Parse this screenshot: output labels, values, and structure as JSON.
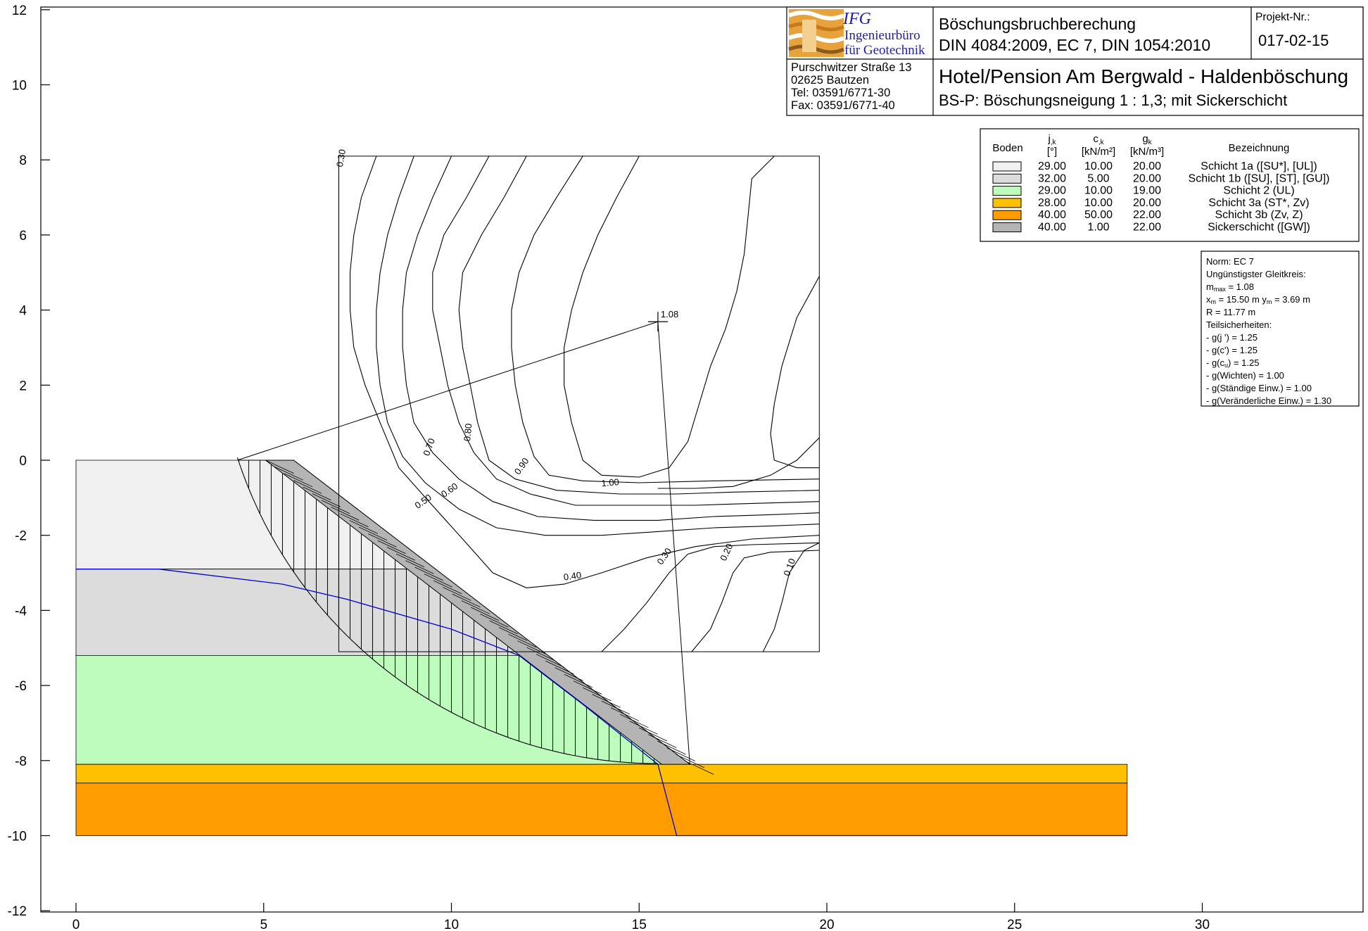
{
  "header": {
    "logo_abbr": "IFG",
    "logo_line1": "Ingenieurbüro",
    "logo_line2": "für Geotechnik",
    "address": [
      "Purschwitzer Straße 13",
      "02625 Bautzen",
      "Tel:  03591/6771-30",
      "Fax: 03591/6771-40"
    ],
    "title": "Böschungsbruchberechung",
    "standards": "DIN 4084:2009, EC 7, DIN 1054:2010",
    "project_label": "Projekt-Nr.:",
    "project_number": "017-02-15",
    "project_name": "Hotel/Pension Am Bergwald - Haldenböschung",
    "subtitle": "BS-P: Böschungsneigung 1 : 1,3; mit Sickerschicht"
  },
  "legend": {
    "col_boden": "Boden",
    "col_phi": "j",
    "col_phi_sub": ",k",
    "col_phi_unit": "[°]",
    "col_c": "c",
    "col_c_sub": ",k",
    "col_c_unit": "[kN/m²]",
    "col_g": "g",
    "col_g_sub": "k",
    "col_g_unit": "[kN/m³]",
    "col_name": "Bezeichnung",
    "rows": [
      {
        "color": "#f0f0f0",
        "phi": "29.00",
        "c": "10.00",
        "g": "20.00",
        "name": "Schicht 1a ([SU*], [UL])"
      },
      {
        "color": "#dcdcdc",
        "phi": "32.00",
        "c": "5.00",
        "g": "20.00",
        "name": "Schicht 1b ([SU], [ST], [GU])"
      },
      {
        "color": "#bdfcbd",
        "phi": "29.00",
        "c": "10.00",
        "g": "19.00",
        "name": "Schicht 2 (UL)"
      },
      {
        "color": "#ffc000",
        "phi": "28.00",
        "c": "10.00",
        "g": "20.00",
        "name": "Schicht 3a (ST*, Zv)"
      },
      {
        "color": "#ff9c00",
        "phi": "40.00",
        "c": "50.00",
        "g": "22.00",
        "name": "Schicht 3b (Zv, Z)"
      },
      {
        "color": "#b4b4b4",
        "phi": "40.00",
        "c": "1.00",
        "g": "22.00",
        "name": "Sickerschicht ([GW])"
      }
    ]
  },
  "info": {
    "norm": "Norm:  EC 7",
    "crit": "Ungünstigster Gleitkreis:",
    "mu_sym": "m",
    "mu_sub": "max",
    "mu_val": " = 1.08",
    "xm_sym": "x",
    "xm_sub": "m",
    "xm_val": " = 15.50 m   ",
    "ym_sym": "y",
    "ym_sub": "m",
    "ym_val": " = 3.69 m",
    "r": "R = 11.77 m",
    "partial": "Teilsicherheiten:",
    "items": [
      " - g(j ') = 1.25",
      " - g(c') = 1.25",
      " - g(c",
      " - g(Wichten) = 1.00",
      " - g(Ständige Einw.) = 1.00",
      " - g(Veränderliche Einw.) = 1.30"
    ],
    "cu_sub": "u",
    "cu_tail": ") = 1.25"
  },
  "diagram": {
    "x_ticks": [
      "0",
      "5",
      "10",
      "15",
      "20",
      "25",
      "30"
    ],
    "y_ticks": [
      "12",
      "10",
      "8",
      "6",
      "4",
      "2",
      "0",
      "-2",
      "-4",
      "-6",
      "-8",
      "-10",
      "-12"
    ],
    "center_label": "1.08",
    "colors": {
      "water": "#0000cc",
      "layer1a": "#f0f0f0",
      "layer1b": "#dcdcdc",
      "layer2": "#bdfcbd",
      "layer3a": "#ffc000",
      "layer3b": "#ff9c00",
      "drain": "#b4b4b4"
    }
  },
  "contours": [
    {
      "label": "0.30",
      "points": [
        [
          7.0,
          8.1
        ],
        [
          7.0,
          3.5
        ],
        [
          7.0,
          -0.8
        ]
      ],
      "lx": 7.1,
      "ly": 7.8,
      "rot": -80
    },
    {
      "label": "0.40",
      "points": [
        [
          8.0,
          8.1
        ],
        [
          7.6,
          7.0
        ],
        [
          7.4,
          6.0
        ],
        [
          7.3,
          5.0
        ],
        [
          7.3,
          4.0
        ],
        [
          7.4,
          3.0
        ],
        [
          7.7,
          2.0
        ],
        [
          8.1,
          1.0
        ],
        [
          8.6,
          -0.2
        ],
        [
          9.4,
          -1.1
        ],
        [
          10.3,
          -2.1
        ],
        [
          11.1,
          -3.0
        ],
        [
          12.0,
          -3.4
        ],
        [
          13.0,
          -3.3
        ],
        [
          14.0,
          -3.0
        ],
        [
          15.2,
          -2.6
        ],
        [
          16.5,
          -2.3
        ],
        [
          18.0,
          -2.1
        ],
        [
          19.8,
          -2.0
        ]
      ],
      "lx": 13.0,
      "ly": -3.2,
      "rot": -8
    },
    {
      "label": "0.50",
      "points": [
        [
          9.0,
          8.1
        ],
        [
          8.6,
          7.0
        ],
        [
          8.3,
          6.0
        ],
        [
          8.1,
          5.0
        ],
        [
          8.0,
          4.0
        ],
        [
          8.0,
          3.0
        ],
        [
          8.1,
          2.0
        ],
        [
          8.3,
          1.0
        ],
        [
          8.7,
          0.1
        ],
        [
          9.3,
          -0.6
        ],
        [
          10.2,
          -1.3
        ],
        [
          11.2,
          -1.8
        ],
        [
          12.5,
          -2.0
        ],
        [
          14.0,
          -2.0
        ],
        [
          15.5,
          -1.9
        ],
        [
          17.0,
          -1.8
        ],
        [
          18.5,
          -1.75
        ],
        [
          19.8,
          -1.7
        ]
      ],
      "lx": 9.1,
      "ly": -1.3,
      "rot": -35
    },
    {
      "label": "0.60",
      "points": [
        [
          10.0,
          8.1
        ],
        [
          9.5,
          7.0
        ],
        [
          9.1,
          6.0
        ],
        [
          8.8,
          5.0
        ],
        [
          8.7,
          4.0
        ],
        [
          8.7,
          3.0
        ],
        [
          8.8,
          2.0
        ],
        [
          9.0,
          1.0
        ],
        [
          9.5,
          0.2
        ],
        [
          10.2,
          -0.5
        ],
        [
          11.1,
          -1.1
        ],
        [
          12.3,
          -1.5
        ],
        [
          13.8,
          -1.6
        ],
        [
          15.5,
          -1.6
        ],
        [
          17.0,
          -1.5
        ],
        [
          18.5,
          -1.45
        ],
        [
          19.8,
          -1.4
        ]
      ],
      "lx": 9.8,
      "ly": -1.0,
      "rot": -35
    },
    {
      "label": "0.70",
      "points": [
        [
          11.0,
          8.1
        ],
        [
          10.4,
          7.0
        ],
        [
          9.8,
          6.0
        ],
        [
          9.5,
          5.0
        ],
        [
          9.5,
          4.0
        ],
        [
          9.7,
          3.0
        ],
        [
          9.9,
          2.0
        ],
        [
          10.2,
          1.0
        ],
        [
          10.6,
          0.2
        ],
        [
          11.2,
          -0.5
        ],
        [
          12.1,
          -0.9
        ],
        [
          13.3,
          -1.2
        ],
        [
          15.0,
          -1.2
        ],
        [
          16.5,
          -1.2
        ],
        [
          18.0,
          -1.15
        ],
        [
          19.8,
          -1.1
        ]
      ],
      "lx": 9.4,
      "ly": 0.1,
      "rot": -70
    },
    {
      "label": "0.80",
      "points": [
        [
          12.0,
          8.1
        ],
        [
          11.4,
          7.0
        ],
        [
          10.8,
          6.0
        ],
        [
          10.3,
          5.0
        ],
        [
          10.2,
          4.0
        ],
        [
          10.3,
          3.0
        ],
        [
          10.5,
          2.0
        ],
        [
          10.7,
          1.0
        ],
        [
          11.0,
          0.0
        ],
        [
          11.7,
          -0.5
        ],
        [
          12.8,
          -0.8
        ],
        [
          14.5,
          -0.9
        ],
        [
          16.0,
          -0.9
        ],
        [
          17.5,
          -0.85
        ],
        [
          19.8,
          -0.8
        ]
      ],
      "lx": 10.5,
      "ly": 0.5,
      "rot": -85
    },
    {
      "label": "0.90",
      "points": [
        [
          13.5,
          8.1
        ],
        [
          12.8,
          7.0
        ],
        [
          12.2,
          6.0
        ],
        [
          11.8,
          5.0
        ],
        [
          11.6,
          4.0
        ],
        [
          11.6,
          3.0
        ],
        [
          11.7,
          2.0
        ],
        [
          11.9,
          1.0
        ],
        [
          12.2,
          0.1
        ],
        [
          12.6,
          -0.4
        ],
        [
          13.5,
          -0.55
        ],
        [
          15.0,
          -0.6
        ],
        [
          17.0,
          -0.55
        ],
        [
          19.8,
          -0.5
        ]
      ],
      "lx": 11.8,
      "ly": -0.4,
      "rot": -55
    },
    {
      "label": "1.00",
      "points": [
        [
          15.0,
          8.1
        ],
        [
          14.4,
          7.0
        ],
        [
          13.9,
          6.0
        ],
        [
          13.5,
          5.0
        ],
        [
          13.2,
          4.0
        ],
        [
          13.0,
          3.0
        ],
        [
          13.0,
          2.0
        ],
        [
          13.2,
          1.0
        ],
        [
          13.5,
          0.0
        ],
        [
          14.0,
          -0.4
        ],
        [
          15.0,
          -0.45
        ],
        [
          15.8,
          -0.2
        ],
        [
          16.3,
          0.5
        ],
        [
          16.6,
          1.5
        ],
        [
          16.9,
          2.5
        ],
        [
          17.3,
          3.5
        ],
        [
          17.6,
          4.5
        ],
        [
          17.8,
          5.5
        ],
        [
          17.9,
          6.5
        ],
        [
          18.0,
          7.5
        ],
        [
          18.6,
          8.1
        ]
      ],
      "lx": 14.0,
      "ly": -0.7,
      "rot": -5
    },
    {
      "label": "",
      "points": [
        [
          19.8,
          4.9
        ],
        [
          19.2,
          3.8
        ],
        [
          18.8,
          2.5
        ],
        [
          18.6,
          1.5
        ],
        [
          18.5,
          0.7
        ],
        [
          18.6,
          0.0
        ],
        [
          19.2,
          -0.2
        ],
        [
          19.8,
          -0.2
        ]
      ],
      "lx": 0,
      "ly": 0,
      "rot": 0
    },
    {
      "label": "",
      "points": [
        [
          19.8,
          0.6
        ],
        [
          19.2,
          0.0
        ],
        [
          18.5,
          -0.4
        ],
        [
          17.5,
          -0.7
        ],
        [
          16.5,
          -0.75
        ],
        [
          15.5,
          -0.75
        ]
      ],
      "lx": 0,
      "ly": 0,
      "rot": 0
    },
    {
      "label": "0.30",
      "points": [
        [
          14.0,
          -5.1
        ],
        [
          14.6,
          -4.5
        ],
        [
          15.2,
          -3.8
        ],
        [
          15.8,
          -3.0
        ],
        [
          16.3,
          -2.5
        ],
        [
          17.0,
          -2.3
        ],
        [
          18.0,
          -2.25
        ],
        [
          19.8,
          -2.2
        ]
      ],
      "lx": 15.6,
      "ly": -2.8,
      "rot": -55
    },
    {
      "label": "0.20",
      "points": [
        [
          16.4,
          -5.1
        ],
        [
          16.9,
          -4.5
        ],
        [
          17.2,
          -3.8
        ],
        [
          17.5,
          -3.0
        ],
        [
          17.8,
          -2.6
        ],
        [
          18.5,
          -2.45
        ],
        [
          19.8,
          -2.4
        ]
      ],
      "lx": 17.3,
      "ly": -2.7,
      "rot": -65
    },
    {
      "label": "0.10",
      "points": [
        [
          18.3,
          -5.1
        ],
        [
          18.6,
          -4.5
        ],
        [
          18.8,
          -3.8
        ],
        [
          19.0,
          -3.0
        ],
        [
          19.4,
          -2.4
        ],
        [
          19.8,
          -2.2
        ]
      ],
      "lx": 19.0,
      "ly": -3.1,
      "rot": -70
    }
  ]
}
